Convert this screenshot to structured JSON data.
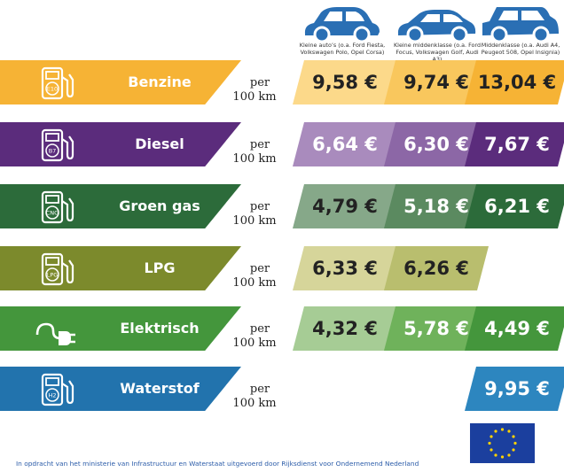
{
  "cars": [
    {
      "icon": "small-car-icon",
      "caption": "Kleine auto’s (o.a. Ford Fiesta, Volkswagen Polo, Opel Corsa)"
    },
    {
      "icon": "medium-car-icon",
      "caption": "Kleine middenklasse (o.a. Ford Focus, Volkswagen Golf, Audi A3)"
    },
    {
      "icon": "suv-car-icon",
      "caption": "Middenklasse (o.a. Audi A4, Peugeot 508, Opel Insignia)"
    }
  ],
  "per_label": {
    "line1": "per",
    "line2": "100 km"
  },
  "fuels": [
    {
      "name": "Benzine",
      "badge": "E10",
      "icon": "fuel-pump-icon",
      "colors": {
        "band": "#f6b335",
        "light": "#fcd98a",
        "mid": "#f9c75d",
        "dark": "#f6b335",
        "text": "#222222"
      },
      "prices": [
        "9,58 €",
        "9,74 €",
        "13,04 €"
      ]
    },
    {
      "name": "Diesel",
      "badge": "B7",
      "icon": "fuel-pump-icon",
      "colors": {
        "band": "#5b2c7c",
        "light": "#a98bbd",
        "mid": "#8c67a6",
        "dark": "#5b2c7c",
        "text": "#ffffff"
      },
      "prices": [
        "6,64 €",
        "6,30 €",
        "7,67 €"
      ]
    },
    {
      "name": "Groen gas",
      "badge": "CNG",
      "icon": "fuel-pump-icon",
      "colors": {
        "band": "#2c6b3a",
        "light": "#86a889",
        "mid": "#5b8a60",
        "dark": "#2c6b3a",
        "text": "#ffffff"
      },
      "prices": [
        "4,79 €",
        "5,18 €",
        "6,21 €"
      ]
    },
    {
      "name": "LPG",
      "badge": "LPG",
      "icon": "fuel-pump-icon",
      "colors": {
        "band": "#7c8a2c",
        "light": "#d6d59a",
        "mid": "#b9be6e",
        "dark": "#7c8a2c",
        "text": "#222222"
      },
      "prices": [
        "6,33 €",
        "6,26 €",
        ""
      ]
    },
    {
      "name": "Elektrisch",
      "badge": "",
      "icon": "electric-plug-icon",
      "colors": {
        "band": "#44963c",
        "light": "#a6cc95",
        "mid": "#6fb25b",
        "dark": "#44963c",
        "text": "#ffffff"
      },
      "prices": [
        "4,32 €",
        "5,78 €",
        "4,49 €"
      ]
    },
    {
      "name": "Waterstof",
      "badge": "H2",
      "icon": "fuel-pump-icon",
      "colors": {
        "band": "#2273ad",
        "light": "#cfe1ef",
        "mid": "#8dbcdc",
        "dark": "#2d86bf",
        "text": "#ffffff"
      },
      "prices": [
        "",
        "",
        "9,95 €"
      ]
    }
  ],
  "footer": "In opdracht van het ministerie van Infrastructuur en Waterstaat uitgevoerd door Rijksdienst voor Ondernemend Nederland"
}
